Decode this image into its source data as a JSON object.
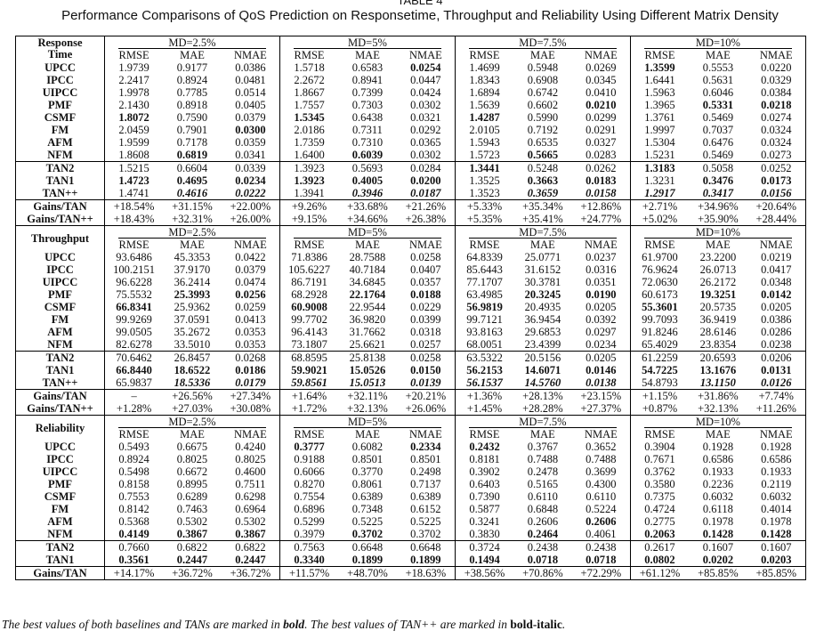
{
  "title": "TABLE 4",
  "caption": "Performance Comparisons of QoS Prediction on Responsetime, Throughput and Reliability Using Different Matrix Density",
  "sections": [
    {
      "label": "Response Time",
      "groups": [
        "MD=2.5%",
        "MD=5%",
        "MD=7.5%",
        "MD=10%"
      ],
      "metrics": [
        "RMSE",
        "MAE",
        "NMAE"
      ],
      "rows": [
        {
          "name": "UPCC",
          "values": [
            "1.9739",
            "0.9177",
            "0.0386",
            "1.5718",
            "0.6583",
            "0.0254",
            "1.4699",
            "0.5948",
            "0.0269",
            "1.3599",
            "0.5553",
            "0.0220"
          ],
          "bold": [
            5,
            9
          ]
        },
        {
          "name": "IPCC",
          "values": [
            "2.2417",
            "0.8924",
            "0.0481",
            "2.2672",
            "0.8941",
            "0.0447",
            "1.8343",
            "0.6908",
            "0.0345",
            "1.6441",
            "0.5631",
            "0.0329"
          ]
        },
        {
          "name": "UIPCC",
          "values": [
            "1.9978",
            "0.7785",
            "0.0514",
            "1.8667",
            "0.7399",
            "0.0424",
            "1.6894",
            "0.6742",
            "0.0410",
            "1.5963",
            "0.6046",
            "0.0384"
          ]
        },
        {
          "name": "PMF",
          "values": [
            "2.1430",
            "0.8918",
            "0.0405",
            "1.7557",
            "0.7303",
            "0.0302",
            "1.5639",
            "0.6602",
            "0.0210",
            "1.3965",
            "0.5331",
            "0.0218"
          ],
          "bold": [
            8,
            10,
            11
          ]
        },
        {
          "name": "CSMF",
          "values": [
            "1.8072",
            "0.7590",
            "0.0379",
            "1.5345",
            "0.6438",
            "0.0321",
            "1.4287",
            "0.5990",
            "0.0299",
            "1.3761",
            "0.5469",
            "0.0274"
          ],
          "bold": [
            0,
            3,
            6
          ]
        },
        {
          "name": "FM",
          "values": [
            "2.0459",
            "0.7901",
            "0.0300",
            "2.0186",
            "0.7311",
            "0.0292",
            "2.0105",
            "0.7192",
            "0.0291",
            "1.9997",
            "0.7037",
            "0.0324"
          ],
          "bold": [
            2
          ]
        },
        {
          "name": "AFM",
          "values": [
            "1.9599",
            "0.7178",
            "0.0359",
            "1.7359",
            "0.7310",
            "0.0365",
            "1.5943",
            "0.6535",
            "0.0327",
            "1.5304",
            "0.6476",
            "0.0324"
          ]
        },
        {
          "name": "NFM",
          "values": [
            "1.8608",
            "0.6819",
            "0.0341",
            "1.6400",
            "0.6039",
            "0.0302",
            "1.5723",
            "0.5665",
            "0.0283",
            "1.5231",
            "0.5469",
            "0.0273"
          ],
          "bold": [
            1,
            4,
            7
          ]
        },
        {
          "name": "TAN2",
          "values": [
            "1.5215",
            "0.6604",
            "0.0339",
            "1.3923",
            "0.5693",
            "0.0284",
            "1.3441",
            "0.5248",
            "0.0262",
            "1.3183",
            "0.5058",
            "0.0252"
          ],
          "bold": [
            6,
            9
          ]
        },
        {
          "name": "TAN1",
          "values": [
            "1.4723",
            "0.4695",
            "0.0234",
            "1.3923",
            "0.4005",
            "0.0200",
            "1.3525",
            "0.3663",
            "0.0183",
            "1.3231",
            "0.3476",
            "0.0173"
          ],
          "bold": [
            0,
            1,
            2,
            3,
            4,
            5,
            7,
            8,
            10,
            11
          ]
        },
        {
          "name": "TAN++",
          "values": [
            "1.4741",
            "0.4616",
            "0.0222",
            "1.3941",
            "0.3946",
            "0.0187",
            "1.3523",
            "0.3659",
            "0.0158",
            "1.2917",
            "0.3417",
            "0.0156"
          ],
          "bold_italic": [
            1,
            2,
            4,
            5,
            7,
            8,
            9,
            10,
            11
          ]
        },
        {
          "name": "Gains/TAN",
          "values": [
            "+18.54%",
            "+31.15%",
            "+22.00%",
            "+9.26%",
            "+33.68%",
            "+21.26%",
            "+5.33%",
            "+35.34%",
            "+12.86%",
            "+2.71%",
            "+34.96%",
            "+20.64%"
          ]
        },
        {
          "name": "Gains/TAN++",
          "values": [
            "+18.43%",
            "+32.31%",
            "+26.00%",
            "+9.15%",
            "+34.66%",
            "+26.38%",
            "+5.35%",
            "+35.41%",
            "+24.77%",
            "+5.02%",
            "+35.90%",
            "+28.44%"
          ]
        }
      ]
    },
    {
      "label": "Throughput",
      "groups": [
        "MD=2.5%",
        "MD=5%",
        "MD=7.5%",
        "MD=10%"
      ],
      "metrics": [
        "RMSE",
        "MAE",
        "NMAE"
      ],
      "rows": [
        {
          "name": "UPCC",
          "values": [
            "93.6486",
            "45.3353",
            "0.0422",
            "71.8386",
            "28.7588",
            "0.0258",
            "64.8339",
            "25.0771",
            "0.0237",
            "61.9700",
            "23.2200",
            "0.0219"
          ]
        },
        {
          "name": "IPCC",
          "values": [
            "100.2151",
            "37.9170",
            "0.0379",
            "105.6227",
            "40.7184",
            "0.0407",
            "85.6443",
            "31.6152",
            "0.0316",
            "76.9624",
            "26.0713",
            "0.0417"
          ]
        },
        {
          "name": "UIPCC",
          "values": [
            "96.6228",
            "36.2414",
            "0.0474",
            "86.7191",
            "34.6845",
            "0.0357",
            "77.1707",
            "30.3781",
            "0.0351",
            "72.0630",
            "26.2172",
            "0.0348"
          ]
        },
        {
          "name": "PMF",
          "values": [
            "75.5532",
            "25.3993",
            "0.0256",
            "68.2928",
            "22.1764",
            "0.0188",
            "63.4985",
            "20.3245",
            "0.0190",
            "60.6173",
            "19.3251",
            "0.0142"
          ],
          "bold": [
            1,
            2,
            4,
            5,
            7,
            8,
            10,
            11
          ]
        },
        {
          "name": "CSMF",
          "values": [
            "66.8341",
            "25.9362",
            "0.0259",
            "60.9008",
            "22.9544",
            "0.0229",
            "56.9819",
            "20.4935",
            "0.0205",
            "55.3601",
            "20.5735",
            "0.0205"
          ],
          "bold": [
            0,
            3,
            6,
            9
          ]
        },
        {
          "name": "FM",
          "values": [
            "99.9269",
            "37.0591",
            "0.0413",
            "99.7702",
            "36.9820",
            "0.0399",
            "99.7121",
            "36.9454",
            "0.0392",
            "99.7093",
            "36.9419",
            "0.0386"
          ]
        },
        {
          "name": "AFM",
          "values": [
            "99.0505",
            "35.2672",
            "0.0353",
            "96.4143",
            "31.7662",
            "0.0318",
            "93.8163",
            "29.6853",
            "0.0297",
            "91.8246",
            "28.6146",
            "0.0286"
          ]
        },
        {
          "name": "NFM",
          "values": [
            "82.6278",
            "33.5010",
            "0.0353",
            "73.1807",
            "25.6621",
            "0.0257",
            "68.0051",
            "23.4399",
            "0.0234",
            "65.4029",
            "23.8354",
            "0.0238"
          ]
        },
        {
          "name": "TAN2",
          "values": [
            "70.6462",
            "26.8457",
            "0.0268",
            "68.8595",
            "25.8138",
            "0.0258",
            "63.5322",
            "20.5156",
            "0.0205",
            "61.2259",
            "20.6593",
            "0.0206"
          ]
        },
        {
          "name": "TAN1",
          "values": [
            "66.8440",
            "18.6522",
            "0.0186",
            "59.9021",
            "15.0526",
            "0.0150",
            "56.2153",
            "14.6071",
            "0.0146",
            "54.7225",
            "13.1676",
            "0.0131"
          ],
          "bold": [
            0,
            1,
            2,
            3,
            4,
            5,
            6,
            7,
            8,
            9,
            10,
            11
          ]
        },
        {
          "name": "TAN++",
          "values": [
            "65.9837",
            "18.5336",
            "0.0179",
            "59.8561",
            "15.0513",
            "0.0139",
            "56.1537",
            "14.5760",
            "0.0138",
            "54.8793",
            "13.1150",
            "0.0126"
          ],
          "bold_italic": [
            1,
            2,
            3,
            4,
            5,
            6,
            7,
            8,
            10,
            11
          ]
        },
        {
          "name": "Gains/TAN",
          "values": [
            "–",
            "+26.56%",
            "+27.34%",
            "+1.64%",
            "+32.11%",
            "+20.21%",
            "+1.36%",
            "+28.13%",
            "+23.15%",
            "+1.15%",
            "+31.86%",
            "+7.74%"
          ]
        },
        {
          "name": "Gains/TAN++",
          "values": [
            "+1.28%",
            "+27.03%",
            "+30.08%",
            "+1.72%",
            "+32.13%",
            "+26.06%",
            "+1.45%",
            "+28.28%",
            "+27.37%",
            "+0.87%",
            "+32.13%",
            "+11.26%"
          ]
        }
      ]
    },
    {
      "label": "Reliability",
      "groups": [
        "MD=2.5%",
        "MD=5%",
        "MD=7.5%",
        "MD=10%"
      ],
      "metrics": [
        "RMSE",
        "MAE",
        "NMAE"
      ],
      "rows": [
        {
          "name": "UPCC",
          "values": [
            "0.5493",
            "0.6675",
            "0.4240",
            "0.3777",
            "0.6082",
            "0.2334",
            "0.2432",
            "0.3767",
            "0.3652",
            "0.3904",
            "0.1928",
            "0.1928"
          ],
          "bold": [
            3,
            5,
            6
          ]
        },
        {
          "name": "IPCC",
          "values": [
            "0.8924",
            "0.8025",
            "0.8025",
            "0.9188",
            "0.8501",
            "0.8501",
            "0.8181",
            "0.7488",
            "0.7488",
            "0.7671",
            "0.6586",
            "0.6586"
          ]
        },
        {
          "name": "UIPCC",
          "values": [
            "0.5498",
            "0.6672",
            "0.4600",
            "0.6066",
            "0.3770",
            "0.2498",
            "0.3902",
            "0.2478",
            "0.3699",
            "0.3762",
            "0.1933",
            "0.1933"
          ]
        },
        {
          "name": "PMF",
          "values": [
            "0.8158",
            "0.8995",
            "0.7511",
            "0.8270",
            "0.8061",
            "0.7137",
            "0.6403",
            "0.5165",
            "0.4300",
            "0.3580",
            "0.2236",
            "0.2119"
          ]
        },
        {
          "name": "CSMF",
          "values": [
            "0.7553",
            "0.6289",
            "0.6298",
            "0.7554",
            "0.6389",
            "0.6389",
            "0.7390",
            "0.6110",
            "0.6110",
            "0.7375",
            "0.6032",
            "0.6032"
          ]
        },
        {
          "name": "FM",
          "values": [
            "0.8142",
            "0.7463",
            "0.6964",
            "0.6896",
            "0.7348",
            "0.6152",
            "0.5877",
            "0.6848",
            "0.5224",
            "0.4724",
            "0.6118",
            "0.4014"
          ]
        },
        {
          "name": "AFM",
          "values": [
            "0.5368",
            "0.5302",
            "0.5302",
            "0.5299",
            "0.5225",
            "0.5225",
            "0.3241",
            "0.2606",
            "0.2606",
            "0.2775",
            "0.1978",
            "0.1978"
          ],
          "bold": [
            8
          ]
        },
        {
          "name": "NFM",
          "values": [
            "0.4149",
            "0.3867",
            "0.3867",
            "0.3979",
            "0.3702",
            "0.3702",
            "0.3830",
            "0.2464",
            "0.4061",
            "0.2063",
            "0.1428",
            "0.1428"
          ],
          "bold": [
            0,
            1,
            2,
            4,
            7,
            9,
            10,
            11
          ]
        },
        {
          "name": "TAN2",
          "values": [
            "0.7660",
            "0.6822",
            "0.6822",
            "0.7563",
            "0.6648",
            "0.6648",
            "0.3724",
            "0.2438",
            "0.2438",
            "0.2617",
            "0.1607",
            "0.1607"
          ]
        },
        {
          "name": "TAN1",
          "values": [
            "0.3561",
            "0.2447",
            "0.2447",
            "0.3340",
            "0.1899",
            "0.1899",
            "0.1494",
            "0.0718",
            "0.0718",
            "0.0802",
            "0.0202",
            "0.0203"
          ],
          "bold": [
            0,
            1,
            2,
            3,
            4,
            5,
            6,
            7,
            8,
            9,
            10,
            11
          ]
        },
        {
          "name": "Gains/TAN",
          "values": [
            "+14.17%",
            "+36.72%",
            "+36.72%",
            "+11.57%",
            "+48.70%",
            "+18.63%",
            "+38.56%",
            "+70.86%",
            "+72.29%",
            "+61.12%",
            "+85.85%",
            "+85.85%"
          ]
        }
      ]
    }
  ],
  "footnote": [
    "The best values of both baselines and TANs are marked in ",
    "bold",
    ". The best values of TAN++ are marked in ",
    "bold-italic",
    "."
  ]
}
